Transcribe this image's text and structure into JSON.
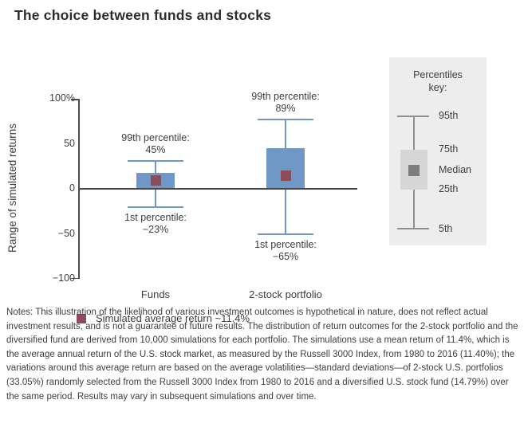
{
  "title": "The choice between funds and stocks",
  "chart_data": {
    "type": "boxplot",
    "title": "The choice between funds and stocks",
    "ylabel": "Range of simulated returns",
    "ylim": [
      -100,
      100
    ],
    "yticks": [
      {
        "label": "100%",
        "value": 100
      },
      {
        "label": "50",
        "value": 50
      },
      {
        "label": "0",
        "value": 0
      },
      {
        "label": "−50",
        "value": -50
      },
      {
        "label": "−100",
        "value": -100
      }
    ],
    "categories": [
      "Funds",
      "2-stock portfolio"
    ],
    "series": [
      {
        "name": "Funds",
        "p99": 45,
        "p95": 31,
        "p75": 18,
        "median": 9,
        "p25": 1,
        "p5": -20,
        "p1": -23,
        "p99_label": "99th percentile:",
        "p99_value_label": "45%",
        "p1_label": "1st percentile:",
        "p1_value_label": "−23%"
      },
      {
        "name": "2-stock portfolio",
        "p99": 89,
        "p95": 77,
        "p75": 45,
        "median": 15,
        "p25": -1,
        "p5": -50,
        "p1": -65,
        "p99_label": "99th percentile:",
        "p99_value_label": "89%",
        "p1_label": "1st percentile:",
        "p1_value_label": "−65%"
      }
    ],
    "legend": {
      "marker_color": "#8a4d5b",
      "label": "Simulated average return ~11.4%"
    },
    "percentiles_key": {
      "title_line1": "Percentiles",
      "title_line2": "key:",
      "labels": [
        "95th",
        "75th",
        "Median",
        "25th",
        "5th"
      ]
    },
    "colors": {
      "box_fill": "#6f98c7",
      "whisker": "#6f98c7",
      "median_marker": "#8a4d5b",
      "axis_line": "#474747",
      "key_panel_bg": "#ededed",
      "text": "#3d3d3d"
    }
  },
  "notes": "Notes: This illustration of the likelihood of various investment outcomes is hypothetical in nature, does not reflect actual investment results, and is not a guarantee of future results. The distribution of return outcomes for the 2-stock portfolio and the diversified fund are derived from 10,000 simulations for each portfolio. The simulations use a mean return of 11.4%, which is the average annual return of the U.S. stock market, as measured by the Russell 3000 Index, from 1980 to 2016 (11.40%); the variations around this average return are based on the average volatilities—standard deviations—of 2-stock U.S. portfolios (33.05%) randomly selected from the Russell 3000 Index from 1980 to 2016 and a diversified U.S. stock fund (14.79%) over the same period. Results may vary in subsequent simulations and over time."
}
